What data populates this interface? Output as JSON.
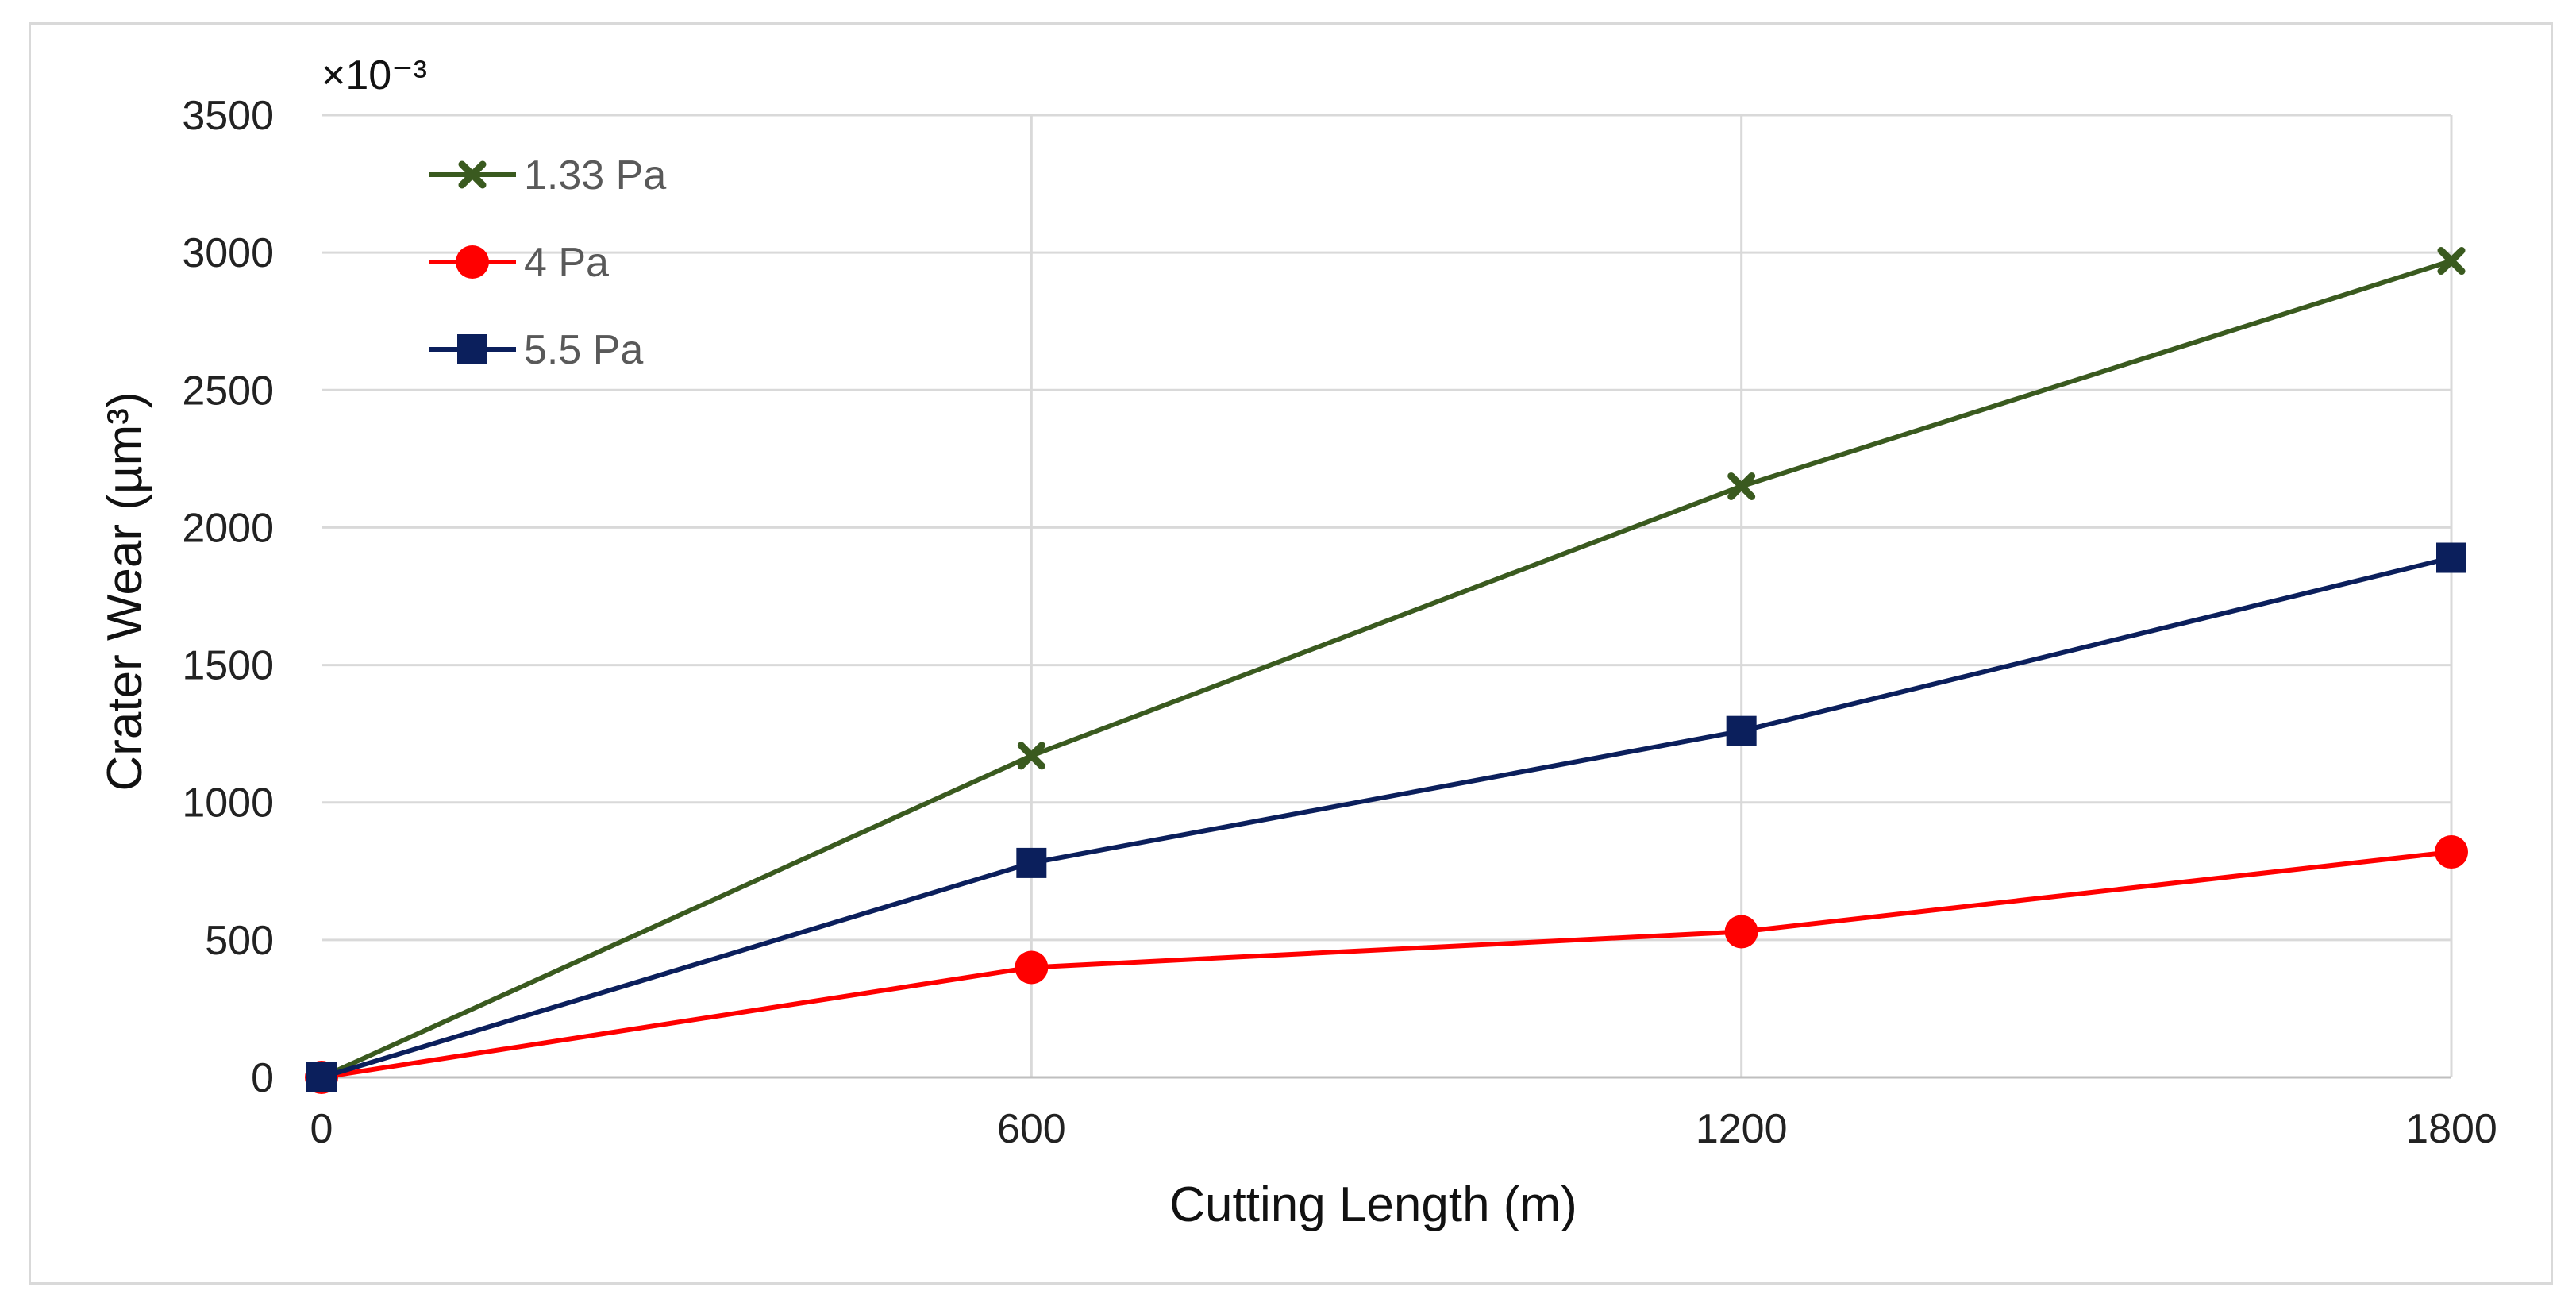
{
  "chart_data": {
    "type": "line",
    "xlabel": "Cutting Length (m)",
    "ylabel": "Crater Wear (µm³)",
    "y_multiplier_label": "×10⁻³",
    "x": [
      0,
      600,
      1200,
      1800
    ],
    "x_ticks": [
      "0",
      "600",
      "1200",
      "1800"
    ],
    "y_ticks": [
      "0",
      "500",
      "1000",
      "1500",
      "2000",
      "2500",
      "3000",
      "3500"
    ],
    "xlim": [
      0,
      1800
    ],
    "ylim": [
      0,
      3500
    ],
    "grid": true,
    "legend_position": "top-left",
    "series": [
      {
        "name": "1.33 Pa",
        "values": [
          0,
          1170,
          2150,
          2970
        ],
        "color": "#3a5a1f",
        "marker": "x"
      },
      {
        "name": "4 Pa",
        "values": [
          0,
          400,
          530,
          820
        ],
        "color": "#ff0000",
        "marker": "circle"
      },
      {
        "name": "5.5 Pa",
        "values": [
          0,
          780,
          1260,
          1890
        ],
        "color": "#0b1f5c",
        "marker": "square"
      }
    ]
  }
}
